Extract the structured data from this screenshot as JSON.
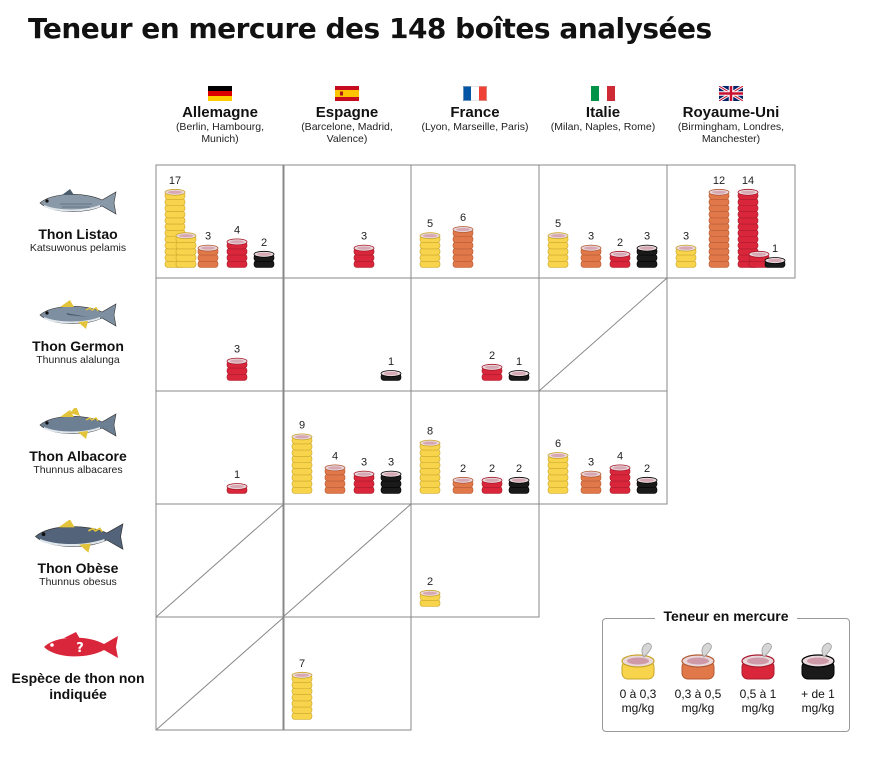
{
  "title": "Teneur en mercure des 148 boîtes analysées",
  "countries": [
    {
      "name": "Allemagne",
      "cities": "(Berlin, Hambourg, Munich)",
      "flag": "de"
    },
    {
      "name": "Espagne",
      "cities": "(Barcelone, Madrid, Valence)",
      "flag": "es"
    },
    {
      "name": "France",
      "cities": "(Lyon, Marseille, Paris)",
      "flag": "fr"
    },
    {
      "name": "Italie",
      "cities": "(Milan, Naples, Rome)",
      "flag": "it"
    },
    {
      "name": "Royaume-Uni",
      "cities": "(Birmingham, Londres, Manchester)",
      "flag": "uk"
    }
  ],
  "species": [
    {
      "name": "Thon Listao",
      "latin": "Katsuwonus pelamis",
      "icon": "skipjack-tuna-icon"
    },
    {
      "name": "Thon Germon",
      "latin": "Thunnus alalunga",
      "icon": "albacore-germon-tuna-icon"
    },
    {
      "name": "Thon Albacore",
      "latin": "Thunnus albacares",
      "icon": "yellowfin-tuna-icon"
    },
    {
      "name": "Thon Obèse",
      "latin": "Thunnus obesus",
      "icon": "bigeye-tuna-icon"
    },
    {
      "name": "Espèce de thon non indiquée",
      "latin": "",
      "icon": "unknown-tuna-icon"
    }
  ],
  "legend": {
    "title": "Teneur en mercure",
    "items": [
      {
        "label": "0 à 0,3 mg/kg",
        "color": "#f7d44c"
      },
      {
        "label": "0,3 à 0,5 mg/kg",
        "color": "#e0784a"
      },
      {
        "label": "0,5 à 1 mg/kg",
        "color": "#d9263a"
      },
      {
        "label": "+ de 1 mg/kg",
        "color": "#1a1a1a"
      }
    ]
  },
  "chart_data": {
    "type": "table",
    "title": "Teneur en mercure des 148 boîtes analysées",
    "rows": [
      "Thon Listao",
      "Thon Germon",
      "Thon Albacore",
      "Thon Obèse",
      "Espèce de thon non indiquée"
    ],
    "columns": [
      "Allemagne",
      "Espagne",
      "France",
      "Italie",
      "Royaume-Uni"
    ],
    "levels": [
      "0 à 0,3 mg/kg",
      "0,3 à 0,5 mg/kg",
      "0,5 à 1 mg/kg",
      "+ de 1 mg/kg"
    ],
    "cells": [
      [
        [
          17,
          3,
          4,
          2
        ],
        [
          0,
          0,
          3,
          0
        ],
        [
          5,
          6,
          0,
          0
        ],
        [
          5,
          3,
          2,
          3
        ],
        [
          3,
          12,
          14,
          1
        ]
      ],
      [
        [
          0,
          0,
          3,
          0
        ],
        [
          0,
          0,
          0,
          1
        ],
        [
          0,
          0,
          2,
          1
        ],
        null,
        null
      ],
      [
        [
          0,
          0,
          1,
          0
        ],
        [
          9,
          4,
          3,
          3
        ],
        [
          8,
          2,
          2,
          2
        ],
        [
          6,
          3,
          4,
          2
        ],
        null
      ],
      [
        null,
        null,
        [
          2,
          0,
          0,
          0
        ],
        null,
        null
      ],
      [
        null,
        [
          7,
          0,
          0,
          0
        ],
        null,
        null,
        null
      ]
    ]
  }
}
